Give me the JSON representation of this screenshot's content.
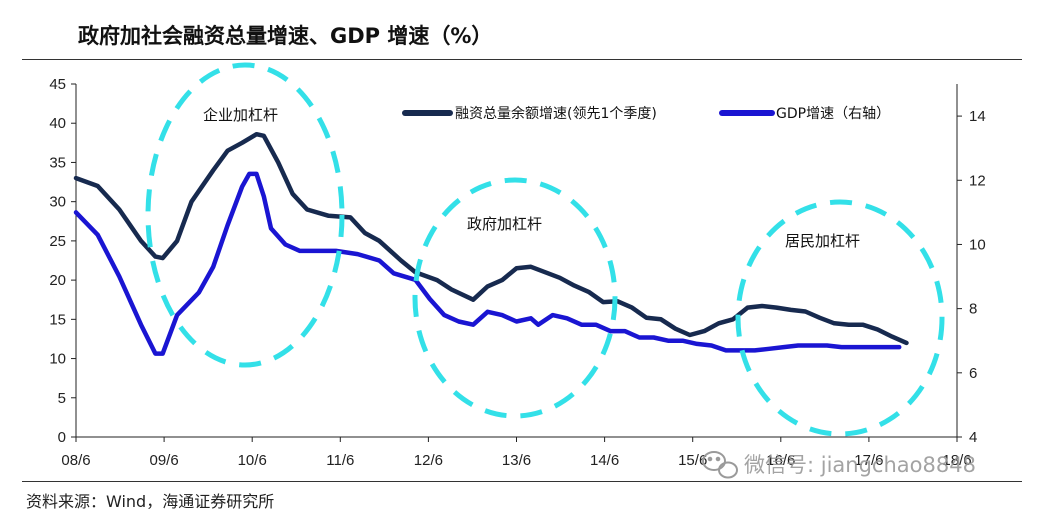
{
  "title": "政府加社会融资总量增速、GDP 增速（%）",
  "source": "资料来源：Wind，海通证券研究所",
  "watermark": "微信号: jiangchao8848",
  "chart_data": {
    "type": "line",
    "x_ticks": [
      "08/6",
      "09/6",
      "10/6",
      "11/6",
      "12/6",
      "13/6",
      "14/6",
      "15/6",
      "16/6",
      "17/6",
      "18/6"
    ],
    "x_range": [
      0,
      122
    ],
    "y_left": {
      "ticks": [
        0,
        5,
        10,
        15,
        20,
        25,
        30,
        35,
        40,
        45
      ],
      "range": [
        0,
        45
      ]
    },
    "y_right": {
      "ticks": [
        4,
        6,
        8,
        10,
        12,
        14
      ],
      "range": [
        4,
        15
      ]
    },
    "series": [
      {
        "name": "融资总量余额增速(领先1个季度)",
        "axis": "left",
        "color": "#172a4f",
        "points": [
          [
            0,
            33
          ],
          [
            3,
            32
          ],
          [
            6,
            29
          ],
          [
            9,
            25
          ],
          [
            11,
            23
          ],
          [
            12,
            22.8
          ],
          [
            14,
            25
          ],
          [
            16,
            30
          ],
          [
            19,
            34
          ],
          [
            21,
            36.5
          ],
          [
            23,
            37.5
          ],
          [
            25,
            38.6
          ],
          [
            26,
            38.4
          ],
          [
            28,
            35
          ],
          [
            30,
            31
          ],
          [
            32,
            29
          ],
          [
            35,
            28.2
          ],
          [
            38,
            28
          ],
          [
            40,
            26
          ],
          [
            42,
            25
          ],
          [
            45,
            22.5
          ],
          [
            47,
            21
          ],
          [
            50,
            20
          ],
          [
            52,
            18.8
          ],
          [
            55,
            17.5
          ],
          [
            57,
            19.2
          ],
          [
            59,
            20
          ],
          [
            61,
            21.5
          ],
          [
            63,
            21.7
          ],
          [
            65,
            21
          ],
          [
            67,
            20.3
          ],
          [
            69,
            19.3
          ],
          [
            71,
            18.5
          ],
          [
            73,
            17.2
          ],
          [
            75,
            17.3
          ],
          [
            77,
            16.5
          ],
          [
            79,
            15.2
          ],
          [
            81,
            15
          ],
          [
            83,
            13.8
          ],
          [
            85,
            13
          ],
          [
            87,
            13.5
          ],
          [
            89,
            14.5
          ],
          [
            91,
            15
          ],
          [
            93,
            16.5
          ],
          [
            95,
            16.7
          ],
          [
            97,
            16.5
          ],
          [
            99,
            16.2
          ],
          [
            101,
            16
          ],
          [
            103,
            15.2
          ],
          [
            105,
            14.5
          ],
          [
            107,
            14.3
          ],
          [
            109,
            14.3
          ],
          [
            111,
            13.7
          ],
          [
            113,
            12.8
          ],
          [
            115,
            12
          ]
        ]
      },
      {
        "name": "GDP增速（右轴）",
        "axis": "right",
        "color": "#1a15d2",
        "points": [
          [
            0,
            11
          ],
          [
            3,
            10.3
          ],
          [
            6,
            9
          ],
          [
            9,
            7.5
          ],
          [
            11,
            6.6
          ],
          [
            12,
            6.6
          ],
          [
            14,
            7.8
          ],
          [
            17,
            8.5
          ],
          [
            19,
            9.3
          ],
          [
            21,
            10.6
          ],
          [
            23,
            11.8
          ],
          [
            24,
            12.2
          ],
          [
            25,
            12.2
          ],
          [
            26,
            11.5
          ],
          [
            27,
            10.5
          ],
          [
            29,
            10
          ],
          [
            31,
            9.8
          ],
          [
            33,
            9.8
          ],
          [
            36,
            9.8
          ],
          [
            39,
            9.7
          ],
          [
            42,
            9.5
          ],
          [
            44,
            9.1
          ],
          [
            47,
            8.9
          ],
          [
            49,
            8.3
          ],
          [
            51,
            7.8
          ],
          [
            53,
            7.6
          ],
          [
            55,
            7.5
          ],
          [
            57,
            7.9
          ],
          [
            59,
            7.8
          ],
          [
            61,
            7.6
          ],
          [
            63,
            7.7
          ],
          [
            64,
            7.5
          ],
          [
            66,
            7.8
          ],
          [
            68,
            7.7
          ],
          [
            70,
            7.5
          ],
          [
            72,
            7.5
          ],
          [
            74,
            7.3
          ],
          [
            76,
            7.3
          ],
          [
            78,
            7.1
          ],
          [
            80,
            7.1
          ],
          [
            82,
            7.0
          ],
          [
            84,
            7.0
          ],
          [
            86,
            6.9
          ],
          [
            88,
            6.85
          ],
          [
            90,
            6.7
          ],
          [
            92,
            6.7
          ],
          [
            94,
            6.7
          ],
          [
            96,
            6.75
          ],
          [
            98,
            6.8
          ],
          [
            100,
            6.85
          ],
          [
            102,
            6.85
          ],
          [
            104,
            6.85
          ],
          [
            106,
            6.8
          ],
          [
            108,
            6.8
          ],
          [
            110,
            6.8
          ],
          [
            112,
            6.8
          ],
          [
            114,
            6.8
          ]
        ]
      }
    ],
    "annotations": [
      "企业加杠杆",
      "政府加杠杆",
      "居民加杠杆"
    ],
    "legend_position": "top-right"
  }
}
